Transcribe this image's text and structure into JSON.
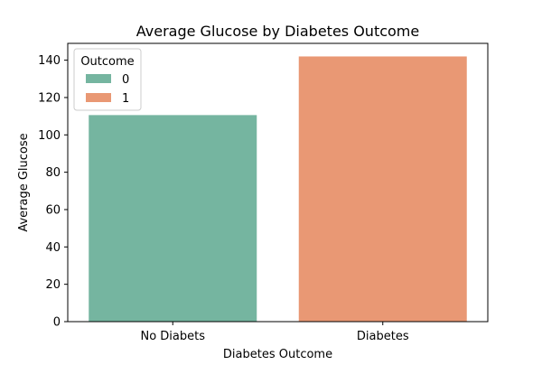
{
  "chart_data": {
    "type": "bar",
    "title": "Average Glucose by Diabetes Outcome",
    "xlabel": "Diabetes Outcome",
    "ylabel": "Average Glucose",
    "categories": [
      "No Diabets",
      "Diabetes"
    ],
    "series": [
      {
        "name": "0",
        "values": [
          110.6,
          null
        ],
        "color": "#75b5a0"
      },
      {
        "name": "1",
        "values": [
          null,
          142.0
        ],
        "color": "#e99874"
      }
    ],
    "ylim": [
      0,
      149
    ],
    "yticks": [
      0,
      20,
      40,
      60,
      80,
      100,
      120,
      140
    ],
    "legend": {
      "title": "Outcome",
      "placement": "top-left"
    },
    "grid": false
  }
}
